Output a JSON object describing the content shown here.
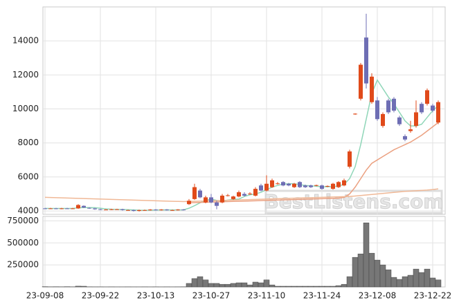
{
  "chart_data": {
    "type": "candlestick",
    "watermark": "BestListens.com",
    "categories": [
      "23-09-08",
      null,
      null,
      null,
      null,
      null,
      null,
      null,
      null,
      null,
      "23-09-22",
      null,
      null,
      null,
      null,
      null,
      null,
      null,
      null,
      null,
      "23-10-13",
      null,
      null,
      null,
      null,
      null,
      null,
      null,
      null,
      null,
      "23-10-27",
      null,
      null,
      null,
      null,
      null,
      null,
      null,
      null,
      null,
      "23-11-10",
      null,
      null,
      null,
      null,
      null,
      null,
      null,
      null,
      null,
      "23-11-24",
      null,
      null,
      null,
      null,
      null,
      null,
      null,
      null,
      null,
      "23-12-08",
      null,
      null,
      null,
      null,
      null,
      null,
      null,
      null,
      null,
      "23-12-22",
      null
    ],
    "open": [
      4150,
      4140,
      4150,
      4130,
      4150,
      4140,
      4150,
      4300,
      4180,
      4150,
      4100,
      4080,
      4080,
      4100,
      4100,
      4050,
      4050,
      4000,
      4050,
      4050,
      4080,
      4050,
      4080,
      4050,
      4050,
      4080,
      4400,
      4700,
      5200,
      4500,
      4800,
      4500,
      4500,
      4900,
      4700,
      4850,
      5000,
      5000,
      4900,
      5500,
      5200,
      5400,
      5600,
      5700,
      5600,
      5400,
      5700,
      5500,
      5500,
      5500,
      5500,
      5450,
      5300,
      5400,
      5500,
      6600,
      9700,
      10600,
      14200,
      10400,
      10500,
      9000,
      10500,
      10600,
      9500,
      8400,
      8700,
      9000,
      10300,
      10300,
      10200,
      9200
    ],
    "high": [
      4180,
      4180,
      4180,
      4180,
      4180,
      4180,
      4400,
      4330,
      4210,
      4180,
      4130,
      4110,
      4130,
      4130,
      4130,
      4080,
      4080,
      4080,
      4080,
      4110,
      4110,
      4110,
      4110,
      4080,
      4110,
      4110,
      4700,
      5600,
      5300,
      4900,
      5000,
      4600,
      5000,
      5000,
      4900,
      5200,
      5100,
      5100,
      5400,
      5600,
      6100,
      5900,
      5700,
      5750,
      5650,
      5650,
      5750,
      5550,
      5550,
      5550,
      5550,
      5500,
      5650,
      5750,
      5900,
      7600,
      9750,
      12700,
      15600,
      12100,
      10700,
      9800,
      10600,
      10700,
      9600,
      8500,
      9300,
      10500,
      10400,
      11200,
      10300,
      10500
    ],
    "low": [
      4110,
      4110,
      4100,
      4100,
      4110,
      4110,
      4120,
      4170,
      4120,
      4070,
      4050,
      4050,
      4050,
      4070,
      4020,
      4020,
      3970,
      3970,
      4020,
      4020,
      4020,
      4020,
      4020,
      4020,
      4020,
      4030,
      4350,
      4650,
      4750,
      4450,
      4450,
      4100,
      4450,
      4850,
      4650,
      4800,
      4850,
      4950,
      4850,
      5150,
      5150,
      5350,
      5550,
      5450,
      5450,
      5350,
      5350,
      5350,
      5350,
      5450,
      5250,
      5400,
      5250,
      5350,
      5450,
      6500,
      9650,
      10500,
      11200,
      10300,
      9300,
      8900,
      9700,
      9800,
      9000,
      8100,
      8600,
      8900,
      9700,
      10200,
      9800,
      9100
    ],
    "close": [
      4140,
      4150,
      4130,
      4150,
      4140,
      4150,
      4350,
      4200,
      4150,
      4100,
      4080,
      4080,
      4100,
      4100,
      4050,
      4050,
      4000,
      4050,
      4050,
      4080,
      4050,
      4080,
      4050,
      4050,
      4080,
      4060,
      4600,
      5400,
      4800,
      4800,
      4500,
      4300,
      4900,
      4920,
      4850,
      5100,
      4900,
      5020,
      5300,
      5200,
      5600,
      5800,
      5620,
      5500,
      5500,
      5600,
      5400,
      5400,
      5400,
      5520,
      5300,
      5470,
      5600,
      5700,
      5800,
      7500,
      9720,
      12600,
      11500,
      11900,
      9400,
      9700,
      9800,
      9900,
      9100,
      8200,
      8800,
      9800,
      9800,
      11100,
      9900,
      10400
    ],
    "up_color": "#e04a1a",
    "down_color": "#6e6eb4",
    "lines": [
      {
        "color": "#8fd6b8",
        "values": [
          4150,
          4148,
          4146,
          4144,
          4144,
          4144,
          4184,
          4194,
          4194,
          4190,
          4160,
          4120,
          4100,
          4090,
          4085,
          4075,
          4060,
          4045,
          4040,
          4045,
          4055,
          4060,
          4065,
          4060,
          4060,
          4065,
          4160,
          4310,
          4480,
          4620,
          4700,
          4620,
          4560,
          4640,
          4680,
          4700,
          4850,
          4950,
          5000,
          5100,
          5250,
          5400,
          5500,
          5580,
          5600,
          5600,
          5550,
          5500,
          5480,
          5450,
          5420,
          5420,
          5430,
          5470,
          5560,
          5900,
          6600,
          7900,
          9400,
          10900,
          11700,
          11200,
          10700,
          10300,
          9800,
          9300,
          9000,
          9000,
          9100,
          9500,
          9900,
          10200
        ]
      },
      {
        "color": "#eba080",
        "values": [
          null,
          null,
          null,
          null,
          null,
          null,
          null,
          null,
          null,
          null,
          null,
          null,
          null,
          null,
          null,
          null,
          null,
          null,
          null,
          null,
          null,
          null,
          null,
          null,
          null,
          null,
          4480,
          4490,
          4500,
          4510,
          4520,
          4530,
          4540,
          4550,
          4560,
          4570,
          4580,
          4590,
          4600,
          4610,
          4620,
          4630,
          4640,
          4650,
          4660,
          4670,
          4680,
          4690,
          4700,
          4710,
          4720,
          4730,
          4740,
          4750,
          4800,
          5000,
          5400,
          5900,
          6400,
          6800,
          7000,
          7200,
          7400,
          7600,
          7750,
          7900,
          8050,
          8250,
          8450,
          8700,
          8950,
          9200
        ]
      },
      {
        "color": "#f0b896",
        "values": [
          4800,
          4790,
          4780,
          4770,
          4760,
          4750,
          4740,
          4730,
          4720,
          4710,
          4700,
          4690,
          4680,
          4670,
          4660,
          4650,
          4640,
          4630,
          4620,
          4610,
          4600,
          4590,
          4580,
          4570,
          4560,
          4550,
          4560,
          4570,
          4580,
          4590,
          4600,
          4610,
          4620,
          4630,
          4640,
          4650,
          4660,
          4670,
          4680,
          4690,
          4700,
          4710,
          4720,
          4730,
          4740,
          4750,
          4760,
          4770,
          4780,
          4790,
          4800,
          4810,
          4820,
          4830,
          4840,
          4850,
          4880,
          4910,
          4940,
          4970,
          5000,
          5030,
          5060,
          5090,
          5120,
          5150,
          5170,
          5190,
          5210,
          5230,
          5260,
          5300
        ]
      }
    ],
    "ylim": [
      3800,
      16000
    ],
    "yticks": [
      4000,
      6000,
      8000,
      10000,
      12000,
      14000
    ],
    "volume": {
      "color": "#777777",
      "values": [
        3000,
        2000,
        2500,
        2000,
        3000,
        2000,
        9000,
        8000,
        2000,
        1500,
        1500,
        1000,
        1500,
        1000,
        1000,
        1500,
        1000,
        1000,
        1500,
        1000,
        1500,
        1000,
        1500,
        1000,
        1500,
        2000,
        40000,
        95000,
        117000,
        80000,
        40000,
        40000,
        30000,
        30000,
        40000,
        47000,
        47000,
        23000,
        55000,
        47000,
        80000,
        23000,
        8000,
        8000,
        8000,
        8000,
        8000,
        8000,
        8000,
        8000,
        8000,
        8000,
        8000,
        15000,
        30000,
        117000,
        336000,
        375000,
        727000,
        383000,
        305000,
        250000,
        195000,
        109000,
        86000,
        117000,
        133000,
        203000,
        164000,
        203000,
        102000,
        80000
      ],
      "ylim": [
        0,
        800000
      ],
      "yticks": [
        250000,
        500000,
        750000
      ]
    },
    "grid": true
  }
}
